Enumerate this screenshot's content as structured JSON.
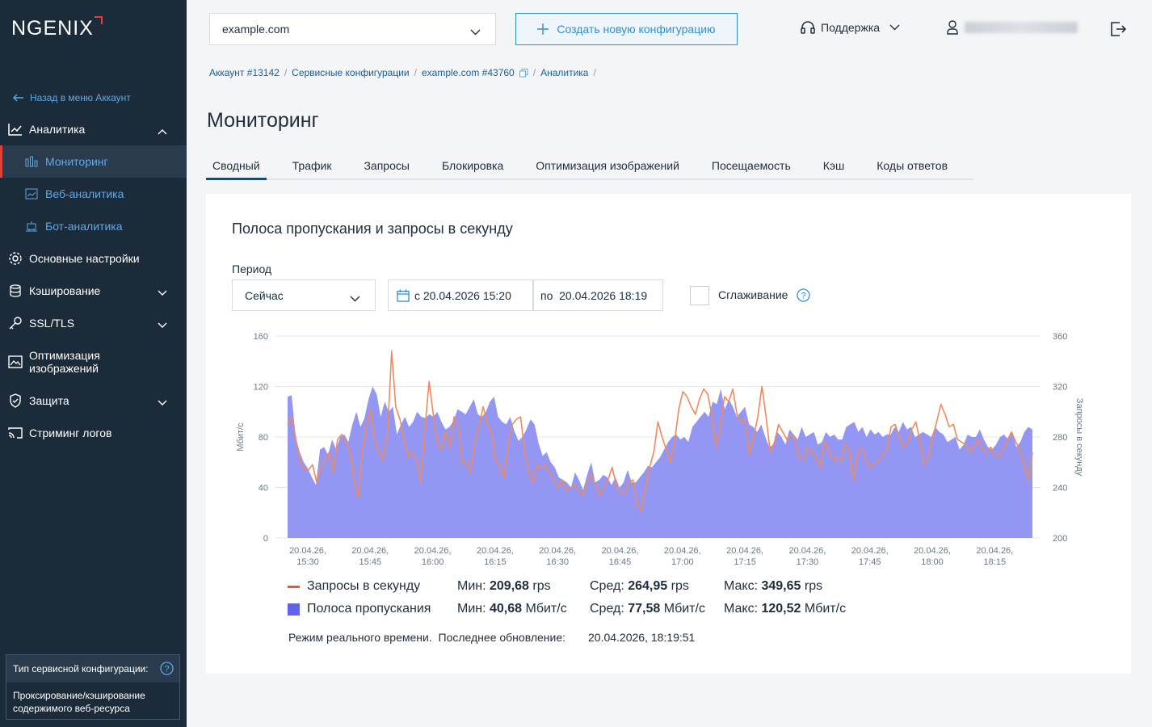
{
  "app": {
    "logo": "NGENIX",
    "accent": "#e2413a",
    "link_color": "#5ea9e6"
  },
  "sidebar": {
    "back_link": "Назад в меню Аккаунт",
    "items": [
      {
        "label": "Аналитика",
        "icon": "chart-line-icon",
        "expanded": true
      },
      {
        "label": "Мониторинг",
        "icon": "bar-chart-icon",
        "active": true
      },
      {
        "label": "Веб-аналитика",
        "icon": "web-analytics-icon"
      },
      {
        "label": "Бот-аналитика",
        "icon": "bot-icon"
      },
      {
        "label": "Основные настройки",
        "icon": "gear-icon"
      },
      {
        "label": "Кэширование",
        "icon": "database-icon"
      },
      {
        "label": "SSL/TLS",
        "icon": "key-icon"
      },
      {
        "label": "Оптимизация изображений",
        "icon": "image-icon"
      },
      {
        "label": "Защита",
        "icon": "shield-icon"
      },
      {
        "label": "Стриминг логов",
        "icon": "cast-icon"
      }
    ],
    "config_box": {
      "title": "Тип сервисной конфигурации:",
      "body": "Проксирование/кэширование содержимого веб-ресурса"
    }
  },
  "header": {
    "domain": "example.com",
    "create_button": "Создать новую конфигурацию",
    "support": "Поддержка"
  },
  "breadcrumb": [
    "Аккаунт #13142",
    "Сервисные конфигурации",
    "example.com #43760",
    "Аналитика"
  ],
  "page_title": "Мониторинг",
  "tabs": [
    "Сводный",
    "Трафик",
    "Запросы",
    "Блокировка",
    "Оптимизация изображений",
    "Посещаемость",
    "Кэш",
    "Коды ответов"
  ],
  "active_tab": "Сводный",
  "card": {
    "title": "Полоса пропускания и запросы в секунду",
    "period_label": "Период",
    "period_value": "Сейчас",
    "date_from": "с 20.04.2026 15:20",
    "date_to": "по  20.04.2026 18:19",
    "smoothing": "Сглаживание",
    "smoothing_checked": false
  },
  "legend": {
    "rps": {
      "label": "Запросы в секунду",
      "min_label": "Мин:",
      "min_value": "209,68",
      "min_unit": "rps",
      "avg_label": "Сред:",
      "avg_value": "264,95",
      "avg_unit": "rps",
      "max_label": "Макс:",
      "max_value": "349,65",
      "max_unit": "rps",
      "color": "#f2552c"
    },
    "bw": {
      "label": "Полоса пропускания",
      "min_label": "Мин:",
      "min_value": "40,68",
      "min_unit": "Мбит/с",
      "avg_label": "Сред:",
      "avg_value": "77,58",
      "avg_unit": "Мбит/с",
      "max_label": "Макс:",
      "max_value": "120,52",
      "max_unit": "Мбит/с",
      "color": "#6063ef"
    }
  },
  "footer": {
    "realtime": "Режим реального времени.",
    "last_update_label": "Последнее обновление:",
    "last_update_value": "20.04.2026, 18:19:51"
  },
  "chart_data": {
    "type": "area",
    "ylabel": "Мбит/с",
    "y2label": "Запросы в секунду",
    "ylim": [
      0,
      160
    ],
    "y2lim": [
      200,
      360
    ],
    "yticks": [
      "0",
      "40",
      "80",
      "120",
      "160"
    ],
    "y2ticks": [
      "200",
      "240",
      "280",
      "320",
      "360"
    ],
    "x_ticks": [
      [
        "20.04.26,",
        "15:30"
      ],
      [
        "20.04.26,",
        "15:45"
      ],
      [
        "20.04.26,",
        "16:00"
      ],
      [
        "20.04.26,",
        "16:15"
      ],
      [
        "20.04.26,",
        "16:30"
      ],
      [
        "20.04.26,",
        "16:45"
      ],
      [
        "20.04.26,",
        "17:00"
      ],
      [
        "20.04.26,",
        "17:15"
      ],
      [
        "20.04.26,",
        "17:30"
      ],
      [
        "20.04.26,",
        "17:45"
      ],
      [
        "20.04.26,",
        "18:00"
      ],
      [
        "20.04.26,",
        "18:15"
      ]
    ],
    "grid": true,
    "series": [
      {
        "name": "Полоса пропускания",
        "axis": "left",
        "values": [
          112,
          113,
          80,
          68,
          60,
          55,
          48,
          42,
          70,
          72,
          66,
          78,
          70,
          80,
          82,
          76,
          90,
          100,
          88,
          95,
          110,
          120,
          114,
          96,
          108,
          100,
          104,
          82,
          90,
          96,
          88,
          92,
          100,
          96,
          95,
          98,
          96,
          100,
          92,
          86,
          88,
          93,
          102,
          100,
          98,
          104,
          110,
          98,
          96,
          100,
          108,
          112,
          96,
          92,
          90,
          96,
          85,
          77,
          80,
          86,
          94,
          90,
          75,
          65,
          68,
          60,
          56,
          48,
          46,
          44,
          40,
          52,
          46,
          38,
          50,
          60,
          44,
          46,
          50,
          48,
          42,
          48,
          40,
          44,
          54,
          44,
          44,
          48,
          52,
          57,
          56,
          60,
          64,
          70,
          76,
          80,
          82,
          78,
          80,
          76,
          88,
          92,
          96,
          100,
          96,
          108,
          106,
          118,
          102,
          110,
          104,
          96,
          100,
          104,
          90,
          88,
          84,
          90,
          80,
          72,
          74,
          84,
          80,
          74,
          86,
          82,
          78,
          88,
          80,
          82,
          84,
          74,
          76,
          84,
          80,
          82,
          78,
          78,
          88,
          90,
          92,
          84,
          88,
          80,
          86,
          82,
          84,
          80,
          82,
          82,
          88,
          84,
          92,
          86,
          88,
          80,
          82,
          84,
          82,
          80,
          88,
          84,
          82,
          76,
          78,
          80,
          70,
          74,
          82,
          80,
          80,
          86,
          78,
          72,
          70,
          74,
          80,
          82,
          78,
          84,
          72,
          76,
          84,
          88,
          86
        ]
      },
      {
        "name": "Запросы в секунду",
        "axis": "right",
        "values": [
          290,
          296,
          278,
          262,
          255,
          254,
          258,
          244,
          256,
          262,
          268,
          252,
          278,
          282,
          276,
          268,
          246,
          232,
          268,
          290,
          302,
          276,
          268,
          262,
          282,
          348,
          304,
          294,
          278,
          264,
          268,
          262,
          244,
          286,
          324,
          298,
          276,
          270,
          284,
          272,
          296,
          290,
          260,
          260,
          252,
          276,
          288,
          304,
          292,
          284,
          262,
          258,
          248,
          274,
          290,
          294,
          296,
          268,
          252,
          244,
          258,
          256,
          258,
          252,
          246,
          240,
          246,
          238,
          240,
          242,
          238,
          234,
          244,
          250,
          242,
          234,
          240,
          246,
          256,
          242,
          236,
          236,
          244,
          246,
          226,
          222,
          240,
          256,
          268,
          292,
          280,
          270,
          260,
          276,
          302,
          316,
          312,
          304,
          298,
          310,
          318,
          314,
          296,
          272,
          288,
          312,
          308,
          318,
          298,
          292,
          294,
          266,
          280,
          296,
          320,
          296,
          268,
          276,
          290,
          284,
          278,
          282,
          278,
          264,
          262,
          272,
          268,
          264,
          256,
          276,
          270,
          262,
          264,
          260,
          274,
          270,
          246,
          266,
          272,
          262,
          256,
          258,
          262,
          266,
          270,
          288,
          290,
          280,
          272,
          276,
          286,
          292,
          276,
          258,
          262,
          280,
          292,
          306,
          298,
          288,
          290,
          278,
          276,
          274,
          268,
          272,
          278,
          270,
          268,
          272,
          266,
          264,
          270,
          278,
          284,
          276,
          270,
          258,
          246,
          268
        ]
      }
    ]
  }
}
